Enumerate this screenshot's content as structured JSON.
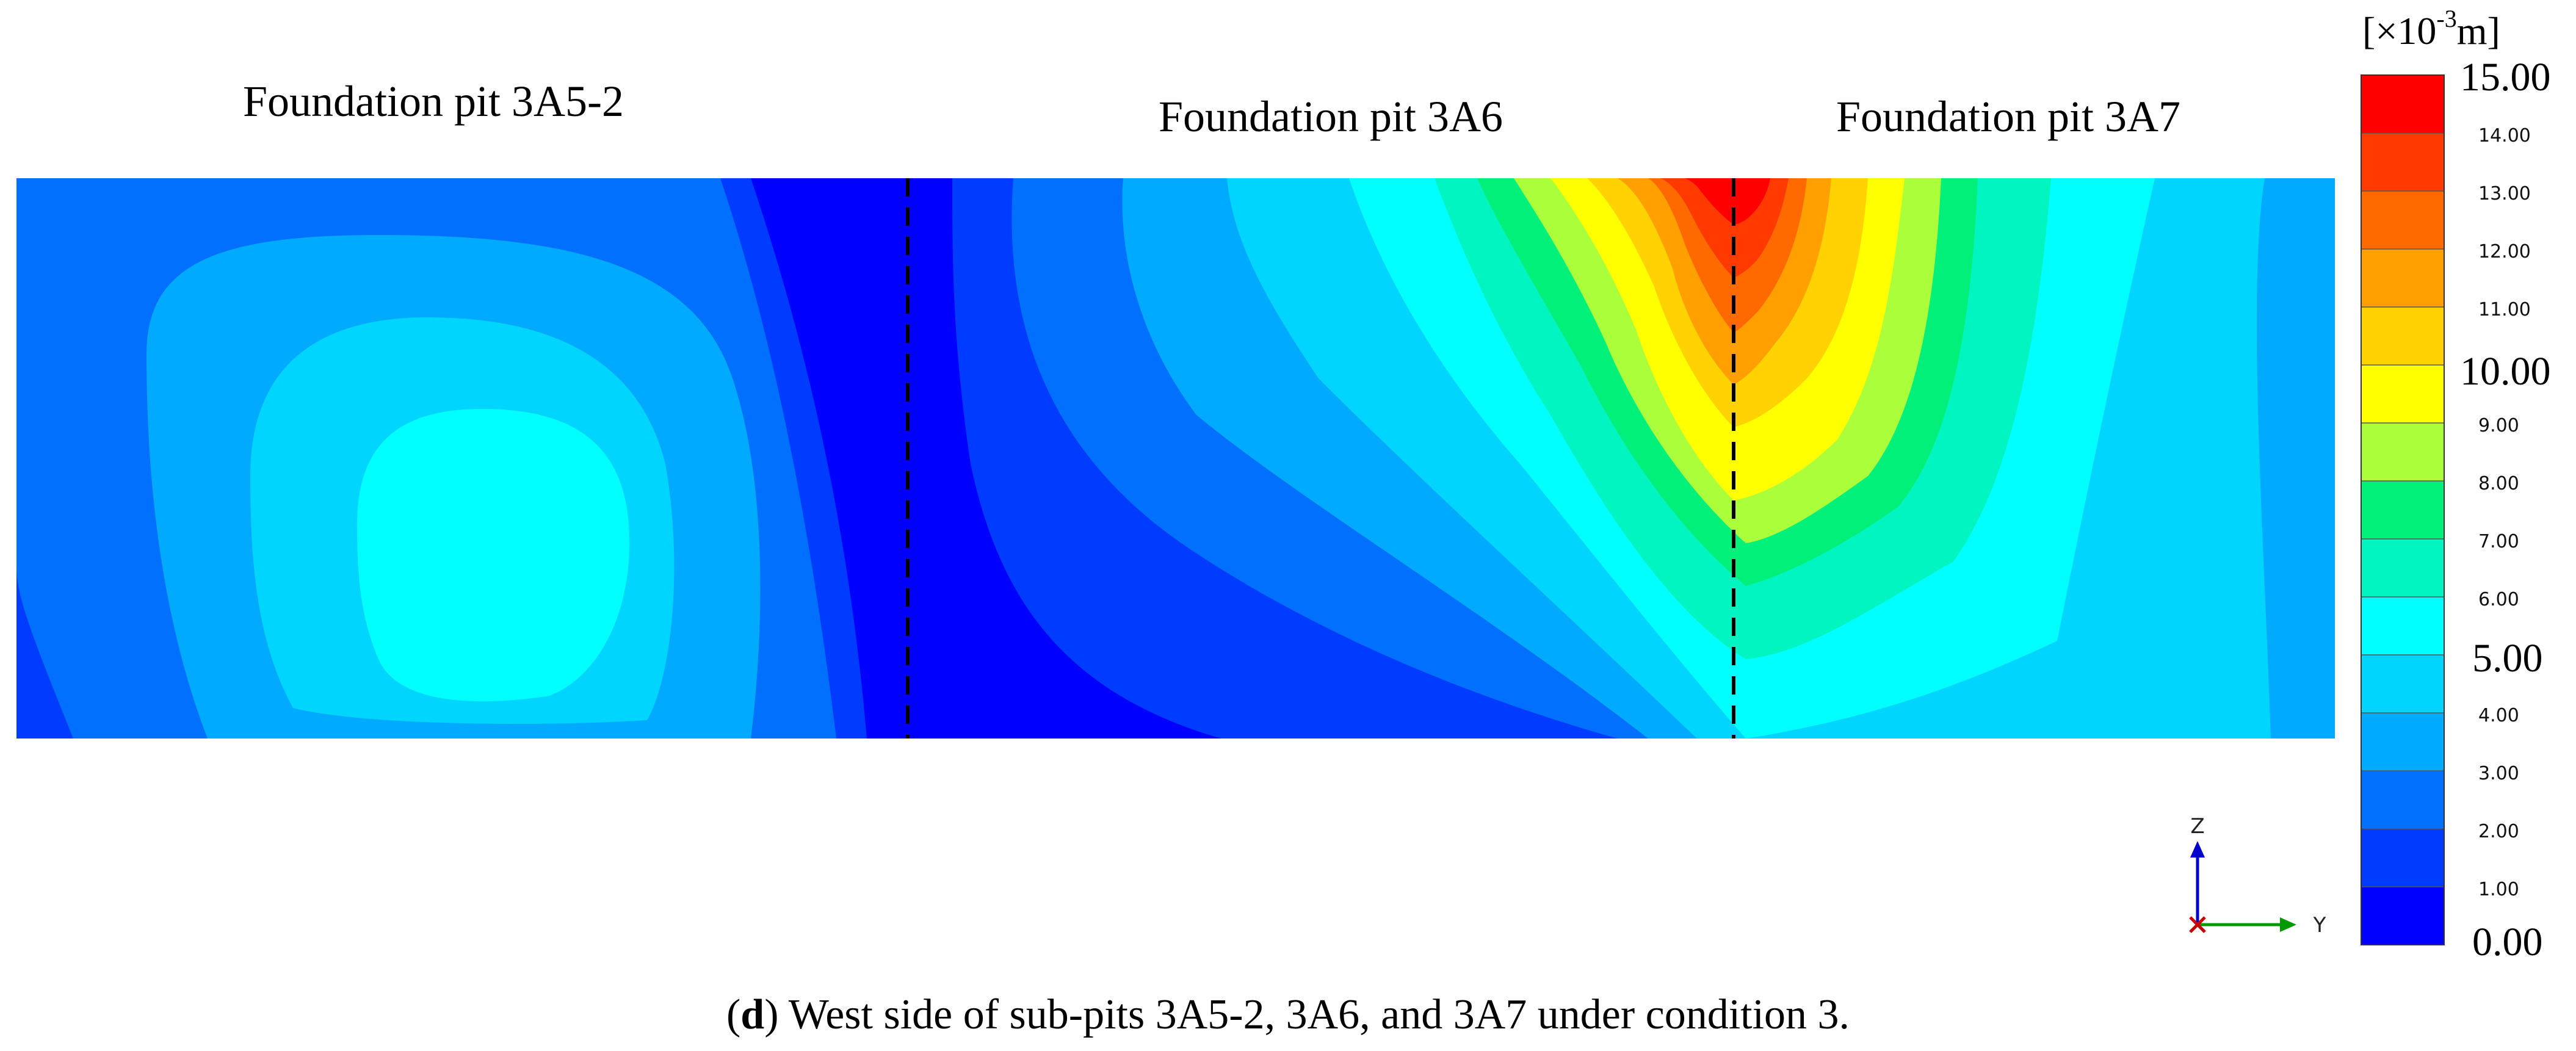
{
  "pit_labels": {
    "left": "Foundation pit 3A5-2",
    "mid": "Foundation pit 3A6",
    "right": "Foundation pit 3A7"
  },
  "colorbar": {
    "unit_prefix": "[×10",
    "unit_exp": "-3",
    "unit_suffix": "m]",
    "major_ticks": [
      "15.00",
      "10.00",
      "5.00",
      "0.00"
    ],
    "minor_ticks": [
      "14.00",
      "13.00",
      "12.00",
      "11.00",
      "9.00",
      "8.00",
      "7.00",
      "6.00",
      "4.00",
      "3.00",
      "2.00",
      "1.00"
    ],
    "colors_top_to_bottom": [
      "#ff0000",
      "#ff3a00",
      "#ff6a00",
      "#ff9f00",
      "#ffd200",
      "#ffff00",
      "#aaff3a",
      "#00f07a",
      "#00f5c0",
      "#00ffff",
      "#00d5ff",
      "#00aaff",
      "#0070ff",
      "#003cff",
      "#0000ff"
    ]
  },
  "axes": {
    "z": "Z",
    "y": "Y"
  },
  "caption": {
    "open": "(",
    "letter": "d",
    "rest": ") West side of sub-pits 3A5-2, 3A6, and 3A7 under condition 3."
  },
  "contour_levels_colors": {
    "c0": "#0000ff",
    "c1": "#003cff",
    "c2": "#0070ff",
    "c3": "#00aaff",
    "c4": "#00d5ff",
    "c5": "#00ffff",
    "c6": "#00f5c0",
    "c7": "#00f07a",
    "c8": "#aaff3a",
    "c9": "#ffff00",
    "c10": "#ffd200",
    "c11": "#ff9f00",
    "c12": "#ff6a00",
    "c13": "#ff3a00",
    "c14": "#ff0000"
  }
}
